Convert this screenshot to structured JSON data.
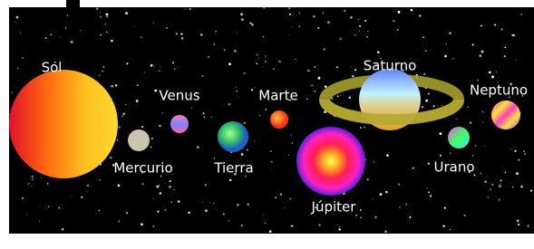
{
  "planets": [
    "Sol",
    "Mercurio",
    "Venus",
    "Tierra",
    "Marte",
    "Júpiter",
    "Saturno",
    "Urano",
    "Neptuno"
  ]
}
